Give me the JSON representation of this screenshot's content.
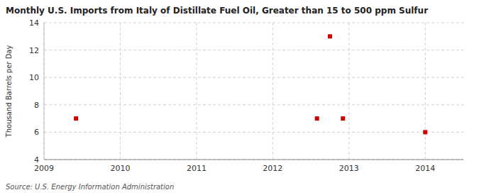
{
  "chart_data": {
    "type": "scatter",
    "title": "Monthly U.S. Imports from Italy of Distillate Fuel Oil, Greater than 15 to 500 ppm Sulfur",
    "y_label": "Thousand Barrels per Day",
    "source": "Source: U.S. Energy Information Administration",
    "x": [
      2009.42,
      2012.58,
      2012.75,
      2012.92,
      2014.0
    ],
    "values": [
      7,
      7,
      13,
      7,
      6
    ],
    "color": "#cc0000",
    "marker": "square",
    "xlim": [
      2009.0,
      2014.5
    ],
    "ylim": [
      4,
      14
    ],
    "xticks": [
      2009,
      2010,
      2011,
      2012,
      2013,
      2014
    ],
    "yticks": [
      4,
      6,
      8,
      10,
      12,
      14
    ],
    "grid": true
  }
}
